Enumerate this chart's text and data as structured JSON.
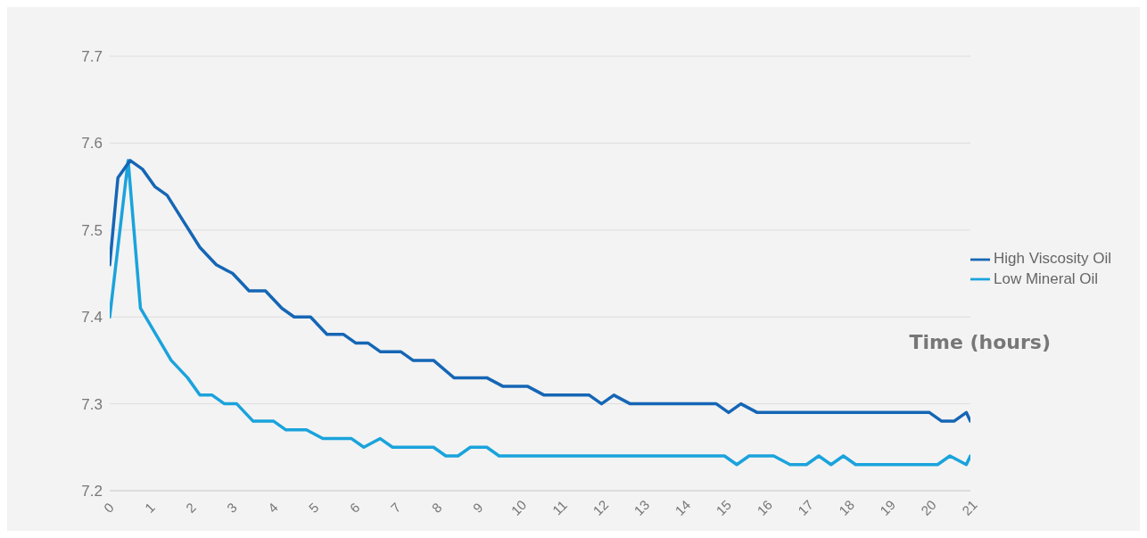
{
  "chart_data": {
    "type": "line",
    "xlabel": "Time (hours)",
    "xlim": [
      0,
      21
    ],
    "xticks": [
      0,
      1,
      2,
      3,
      4,
      5,
      6,
      7,
      8,
      9,
      10,
      11,
      12,
      13,
      14,
      15,
      16,
      17,
      18,
      19,
      20,
      21
    ],
    "ylim": [
      7.2,
      7.7
    ],
    "yticks": [
      7.2,
      7.3,
      7.4,
      7.5,
      7.6,
      7.7
    ],
    "grid": "y",
    "legend": "right",
    "marker": "none",
    "line_style": "solid",
    "series": [
      {
        "name": "Low Mineral Oil",
        "color": "#1aa3dc",
        "x": [
          0,
          0.45,
          0.75,
          1.0,
          1.5,
          1.9,
          2.2,
          2.5,
          2.8,
          3.1,
          3.5,
          4.0,
          4.3,
          4.8,
          5.2,
          5.9,
          6.2,
          6.6,
          6.9,
          7.9,
          8.2,
          8.5,
          8.8,
          9.2,
          9.5,
          15.0,
          15.3,
          15.6,
          16.2,
          16.6,
          17.0,
          17.3,
          17.6,
          17.9,
          18.2,
          20.2,
          20.5,
          20.9,
          21
        ],
        "values": [
          7.4,
          7.58,
          7.41,
          7.39,
          7.35,
          7.33,
          7.31,
          7.31,
          7.3,
          7.3,
          7.28,
          7.28,
          7.27,
          7.27,
          7.26,
          7.26,
          7.25,
          7.26,
          7.25,
          7.25,
          7.24,
          7.24,
          7.25,
          7.25,
          7.24,
          7.24,
          7.23,
          7.24,
          7.24,
          7.23,
          7.23,
          7.24,
          7.23,
          7.24,
          7.23,
          7.23,
          7.24,
          7.23,
          7.24
        ]
      },
      {
        "name": "High Viscosity Oil",
        "color": "#1566b5",
        "x": [
          0,
          0.2,
          0.5,
          0.8,
          1.1,
          1.4,
          1.8,
          2.2,
          2.6,
          3.0,
          3.4,
          3.8,
          4.2,
          4.5,
          4.9,
          5.3,
          5.7,
          6.0,
          6.3,
          6.6,
          7.1,
          7.4,
          7.9,
          8.4,
          9.2,
          9.6,
          10.2,
          10.6,
          11.7,
          12.0,
          12.3,
          12.7,
          14.8,
          15.1,
          15.4,
          15.8,
          20.0,
          20.3,
          20.6,
          20.9,
          21
        ],
        "values": [
          7.46,
          7.56,
          7.58,
          7.57,
          7.55,
          7.54,
          7.51,
          7.48,
          7.46,
          7.45,
          7.43,
          7.43,
          7.41,
          7.4,
          7.4,
          7.38,
          7.38,
          7.37,
          7.37,
          7.36,
          7.36,
          7.35,
          7.35,
          7.33,
          7.33,
          7.32,
          7.32,
          7.31,
          7.31,
          7.3,
          7.31,
          7.3,
          7.3,
          7.29,
          7.3,
          7.29,
          7.29,
          7.28,
          7.28,
          7.29,
          7.28
        ]
      }
    ]
  }
}
